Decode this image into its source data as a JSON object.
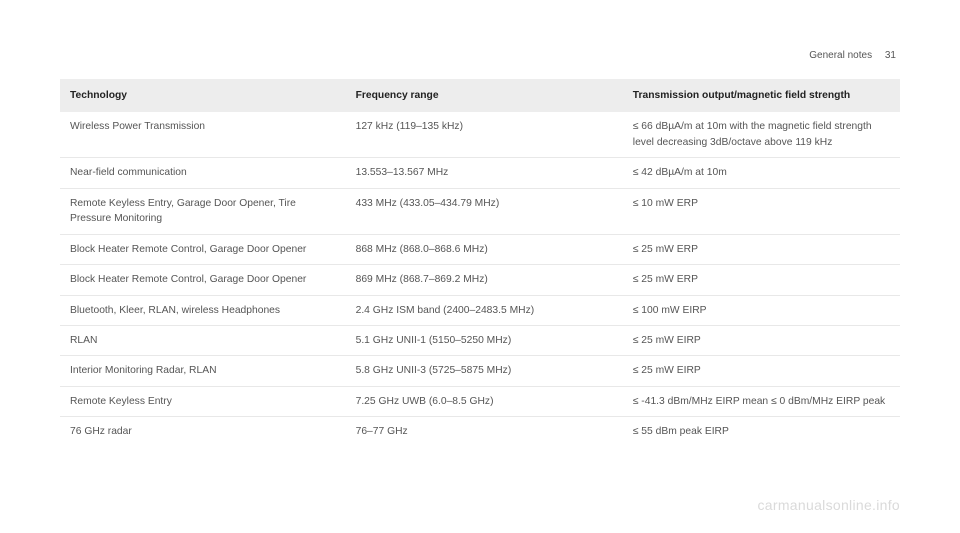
{
  "page": {
    "section": "General notes",
    "number": "31"
  },
  "table": {
    "columns": [
      "Technology",
      "Frequency range",
      "Transmission output/magnetic field strength"
    ],
    "rows": [
      [
        "Wireless Power Transmission",
        "127 kHz (119–135 kHz)",
        "≤ 66 dBµA/m at 10m with the magnetic field strength level decreasing 3dB/octave above 119 kHz"
      ],
      [
        "Near-field communication",
        "13.553–13.567 MHz",
        "≤ 42 dBµA/m at 10m"
      ],
      [
        "Remote Keyless Entry, Garage Door Opener, Tire Pressure Monitoring",
        "433 MHz (433.05–434.79 MHz)",
        "≤ 10 mW ERP"
      ],
      [
        "Block Heater Remote Control, Garage Door Opener",
        "868 MHz (868.0–868.6 MHz)",
        "≤ 25 mW ERP"
      ],
      [
        "Block Heater Remote Control, Garage Door Opener",
        "869 MHz (868.7–869.2 MHz)",
        "≤ 25 mW ERP"
      ],
      [
        "Bluetooth, Kleer, RLAN, wireless Headphones",
        "2.4 GHz ISM band (2400–2483.5 MHz)",
        "≤ 100 mW EIRP"
      ],
      [
        "RLAN",
        "5.1 GHz UNII-1 (5150–5250 MHz)",
        "≤ 25 mW EIRP"
      ],
      [
        "Interior Monitoring Radar, RLAN",
        "5.8 GHz UNII-3 (5725–5875 MHz)",
        "≤ 25 mW EIRP"
      ],
      [
        "Remote Keyless Entry",
        "7.25 GHz UWB (6.0–8.5 GHz)",
        "≤ -41.3 dBm/MHz EIRP mean ≤ 0 dBm/MHz EIRP peak"
      ],
      [
        "76 GHz radar",
        "76–77 GHz",
        "≤ 55 dBm peak EIRP"
      ]
    ]
  },
  "watermark": "carmanualsonline.info",
  "style": {
    "background_color": "#ffffff",
    "header_bg": "#ededed",
    "row_border": "#e8e8e8",
    "text_color": "#555555",
    "header_text_color": "#222222",
    "watermark_color": "#dadada",
    "base_fontsize": 10.3,
    "header_fontsize": 10.3
  }
}
